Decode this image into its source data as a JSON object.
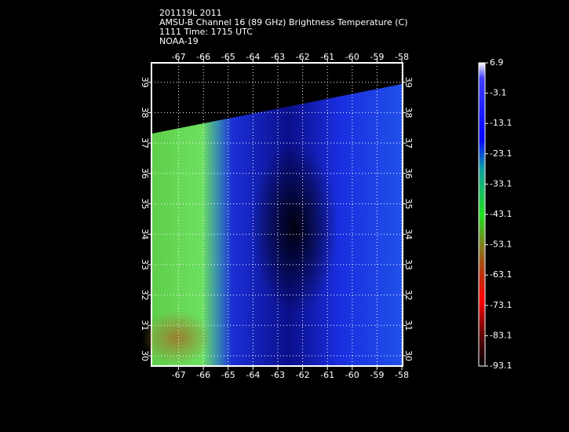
{
  "header": {
    "lines": [
      "201119L 2011",
      "AMSU-B Channel 16 (89 GHz) Brightness Temperature (C)",
      "1111 Time: 1715 UTC",
      "NOAA-19"
    ]
  },
  "map": {
    "lon_ticks": [
      -67,
      -66,
      -65,
      -64,
      -63,
      -62,
      -61,
      -60,
      -59,
      -58
    ],
    "lat_ticks": [
      30,
      31,
      32,
      33,
      34,
      35,
      36,
      37,
      38,
      39
    ]
  },
  "colorbar": {
    "ticks": [
      6.9,
      -3.1,
      -13.1,
      -23.1,
      -33.1,
      -43.1,
      -53.1,
      -63.1,
      -73.1,
      -83.1,
      -93.1
    ]
  }
}
